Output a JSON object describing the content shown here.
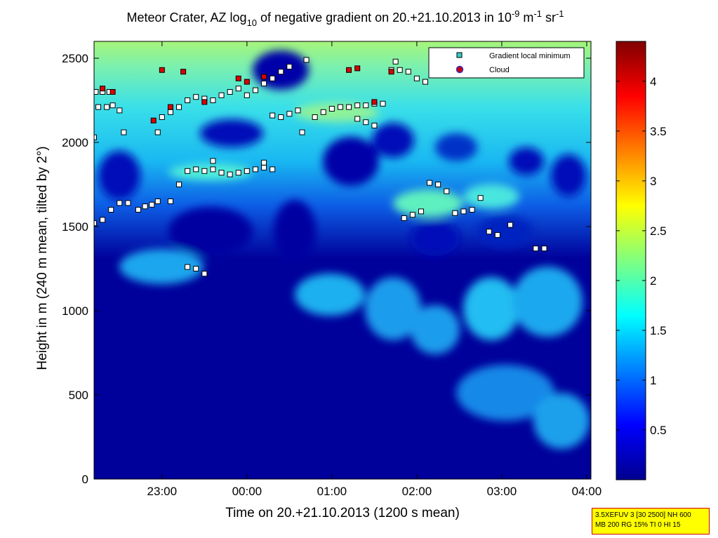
{
  "chart_data": {
    "type": "heatmap",
    "title_parts": {
      "pre": "Meteor Crater, AZ log",
      "sub": "10",
      "mid": " of negative gradient on 20.+21.10.2013 in 10",
      "sup1": "-9",
      "mid2": " m",
      "sup2": "-1",
      "mid3": " sr",
      "sup3": "-1"
    },
    "xlabel": "Time on 20.+21.10.2013 (1200 s mean)",
    "ylabel": "Height in m (240 m mean, tilted by 2°)",
    "x_ticks": [
      "23:00",
      "00:00",
      "01:00",
      "02:00",
      "03:00",
      "04:00"
    ],
    "x_tick_hours": [
      23,
      24,
      25,
      26,
      27,
      28
    ],
    "xlim_hours": [
      22.2,
      28.05
    ],
    "y_ticks": [
      "0",
      "500",
      "1000",
      "1500",
      "2000",
      "2500"
    ],
    "y_tick_values": [
      0,
      500,
      1000,
      1500,
      2000,
      2500
    ],
    "ylim": [
      0,
      2600
    ],
    "colorbar": {
      "ticks": [
        "0.5",
        "1",
        "1.5",
        "2",
        "2.5",
        "3",
        "3.5",
        "4"
      ],
      "tick_values": [
        0.5,
        1,
        1.5,
        2,
        2.5,
        3,
        3.5,
        4
      ],
      "range": [
        0,
        4.4
      ],
      "colormap": "jet"
    },
    "legend": {
      "position": "top-right",
      "entries": [
        {
          "label": "Gradient local minimum",
          "color": "#33cccc",
          "marker": "square"
        },
        {
          "label": "Cloud",
          "color": "#cc0000",
          "marker": "circle"
        }
      ]
    },
    "series": [
      {
        "name": "Gradient local minimum",
        "marker": "square",
        "points": [
          [
            22.22,
            2300
          ],
          [
            22.3,
            2300
          ],
          [
            22.38,
            2300
          ],
          [
            22.25,
            2210
          ],
          [
            22.35,
            2210
          ],
          [
            22.42,
            2220
          ],
          [
            22.5,
            2190
          ],
          [
            22.2,
            2030
          ],
          [
            22.55,
            2060
          ],
          [
            22.2,
            1520
          ],
          [
            22.3,
            1540
          ],
          [
            22.4,
            1600
          ],
          [
            22.5,
            1640
          ],
          [
            22.6,
            1640
          ],
          [
            22.72,
            1600
          ],
          [
            22.8,
            1620
          ],
          [
            22.88,
            1630
          ],
          [
            22.95,
            1650
          ],
          [
            23.1,
            1650
          ],
          [
            22.95,
            2060
          ],
          [
            23.0,
            2150
          ],
          [
            23.1,
            2180
          ],
          [
            23.2,
            2210
          ],
          [
            23.3,
            2250
          ],
          [
            23.4,
            2270
          ],
          [
            23.5,
            2260
          ],
          [
            23.6,
            2250
          ],
          [
            23.7,
            2280
          ],
          [
            23.8,
            2300
          ],
          [
            23.9,
            2320
          ],
          [
            24.0,
            2280
          ],
          [
            24.1,
            2310
          ],
          [
            24.2,
            2350
          ],
          [
            24.3,
            2380
          ],
          [
            24.4,
            2420
          ],
          [
            24.5,
            2450
          ],
          [
            23.2,
            1750
          ],
          [
            23.3,
            1830
          ],
          [
            23.4,
            1840
          ],
          [
            23.5,
            1830
          ],
          [
            23.6,
            1840
          ],
          [
            23.7,
            1820
          ],
          [
            23.8,
            1810
          ],
          [
            23.9,
            1820
          ],
          [
            24.0,
            1830
          ],
          [
            24.1,
            1840
          ],
          [
            24.2,
            1850
          ],
          [
            24.3,
            1840
          ],
          [
            23.6,
            1890
          ],
          [
            24.2,
            1880
          ],
          [
            23.3,
            1260
          ],
          [
            23.4,
            1250
          ],
          [
            23.5,
            1220
          ],
          [
            24.3,
            2160
          ],
          [
            24.4,
            2150
          ],
          [
            24.5,
            2170
          ],
          [
            24.6,
            2190
          ],
          [
            24.65,
            2060
          ],
          [
            24.8,
            2150
          ],
          [
            24.9,
            2180
          ],
          [
            25.0,
            2200
          ],
          [
            25.1,
            2210
          ],
          [
            25.2,
            2210
          ],
          [
            25.3,
            2220
          ],
          [
            25.4,
            2220
          ],
          [
            25.5,
            2230
          ],
          [
            25.6,
            2230
          ],
          [
            25.3,
            2140
          ],
          [
            25.4,
            2120
          ],
          [
            25.5,
            2100
          ],
          [
            24.7,
            2490
          ],
          [
            25.7,
            2430
          ],
          [
            25.8,
            2430
          ],
          [
            25.9,
            2420
          ],
          [
            26.0,
            2380
          ],
          [
            26.1,
            2360
          ],
          [
            25.75,
            2480
          ],
          [
            25.85,
            1550
          ],
          [
            25.95,
            1570
          ],
          [
            26.05,
            1590
          ],
          [
            26.15,
            1760
          ],
          [
            26.25,
            1750
          ],
          [
            26.35,
            1710
          ],
          [
            26.45,
            1580
          ],
          [
            26.55,
            1590
          ],
          [
            26.65,
            1600
          ],
          [
            26.75,
            1670
          ],
          [
            26.85,
            1470
          ],
          [
            26.95,
            1450
          ],
          [
            27.1,
            1510
          ],
          [
            27.4,
            1370
          ],
          [
            27.5,
            1370
          ]
        ]
      },
      {
        "name": "Cloud",
        "marker": "circle",
        "points": [
          [
            22.3,
            2320
          ],
          [
            22.42,
            2300
          ],
          [
            22.9,
            2130
          ],
          [
            23.0,
            2430
          ],
          [
            23.1,
            2210
          ],
          [
            23.25,
            2420
          ],
          [
            23.5,
            2240
          ],
          [
            23.9,
            2380
          ],
          [
            24.0,
            2360
          ],
          [
            24.2,
            2390
          ],
          [
            25.2,
            2430
          ],
          [
            25.3,
            2440
          ],
          [
            25.5,
            2240
          ],
          [
            25.7,
            2420
          ]
        ]
      }
    ]
  },
  "info_box": {
    "line1": "3.5XEFUV 3 [30 2500] NH 600",
    "line2": "MB 200 RG 15% TI 0 HI 15"
  }
}
